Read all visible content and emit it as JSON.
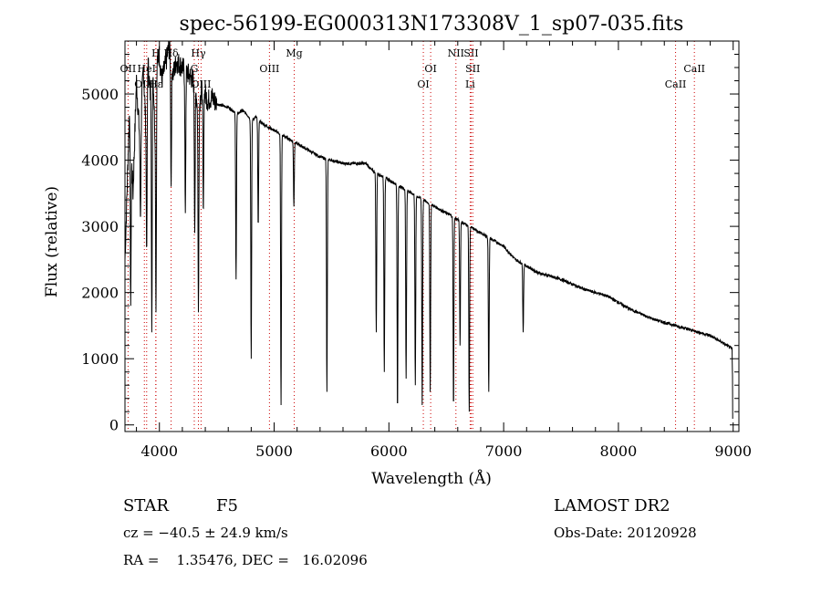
{
  "chart_data": {
    "type": "line",
    "title": "spec-56199-EG000313N173308V_1_sp07-035.fits",
    "xlabel": "Wavelength (Å)",
    "ylabel": "Flux (relative)",
    "xlim": [
      3700,
      9050
    ],
    "ylim": [
      -100,
      5800
    ],
    "xticks": [
      4000,
      5000,
      6000,
      7000,
      8000,
      9000
    ],
    "yticks": [
      0,
      1000,
      2000,
      3000,
      4000,
      5000
    ],
    "grid": false,
    "series": [
      {
        "style": "black solid line",
        "x": [
          3700,
          3740,
          3770,
          3800,
          3830,
          3860,
          3880,
          3900,
          3920,
          3940,
          3960,
          3980,
          4000,
          4020,
          4060,
          4080,
          4100,
          4120,
          4150,
          4200,
          4250,
          4300,
          4320,
          4340,
          4360,
          4380,
          4420,
          4460,
          4500,
          4600,
          4680,
          4720,
          4760,
          4800,
          4840,
          4900,
          4950,
          5000,
          5050,
          5100,
          5150,
          5200,
          5250,
          5300,
          5400,
          5500,
          5600,
          5700,
          5800,
          5850,
          5900,
          5950,
          6000,
          6050,
          6100,
          6150,
          6200,
          6250,
          6300,
          6400,
          6450,
          6500,
          6560,
          6600,
          6650,
          6700,
          6750,
          6800,
          6900,
          7000,
          7100,
          7200,
          7300,
          7500,
          7700,
          7900,
          8100,
          8300,
          8500,
          8700,
          8800,
          8900,
          8990,
          9000
        ],
        "y": [
          2500,
          4800,
          3500,
          5200,
          4300,
          5400,
          4600,
          5500,
          5000,
          5600,
          4500,
          5500,
          5600,
          5200,
          5500,
          5700,
          5600,
          5300,
          5500,
          5400,
          5300,
          5200,
          5000,
          4700,
          5000,
          5100,
          4900,
          4950,
          4850,
          4800,
          4700,
          4750,
          4700,
          4600,
          4650,
          4550,
          4500,
          4450,
          4400,
          4350,
          4300,
          4250,
          4200,
          4150,
          4050,
          4000,
          3950,
          3950,
          3950,
          3850,
          3800,
          3750,
          3700,
          3650,
          3600,
          3550,
          3500,
          3450,
          3400,
          3300,
          3250,
          3200,
          3150,
          3100,
          3050,
          3000,
          2950,
          2900,
          2800,
          2700,
          2500,
          2400,
          2300,
          2200,
          2050,
          1950,
          1750,
          1600,
          1500,
          1400,
          1350,
          1250,
          1150,
          100
        ]
      }
    ],
    "absorption_dips": [
      {
        "x": 3750,
        "y": 1800
      },
      {
        "x": 3835,
        "y": 3100
      },
      {
        "x": 3889,
        "y": 2600
      },
      {
        "x": 3934,
        "y": 1400
      },
      {
        "x": 3970,
        "y": 1700
      },
      {
        "x": 4102,
        "y": 3600
      },
      {
        "x": 4226,
        "y": 3200
      },
      {
        "x": 4308,
        "y": 2900
      },
      {
        "x": 4340,
        "y": 1700
      },
      {
        "x": 4383,
        "y": 3200
      },
      {
        "x": 4668,
        "y": 2200
      },
      {
        "x": 4800,
        "y": 1000
      },
      {
        "x": 4861,
        "y": 3000
      },
      {
        "x": 5060,
        "y": 300
      },
      {
        "x": 5172,
        "y": 3300
      },
      {
        "x": 5460,
        "y": 500
      },
      {
        "x": 5890,
        "y": 1400
      },
      {
        "x": 5960,
        "y": 800
      },
      {
        "x": 6075,
        "y": 200
      },
      {
        "x": 6150,
        "y": 700
      },
      {
        "x": 6230,
        "y": 600
      },
      {
        "x": 6290,
        "y": 300
      },
      {
        "x": 6360,
        "y": 500
      },
      {
        "x": 6563,
        "y": 250
      },
      {
        "x": 6620,
        "y": 1200
      },
      {
        "x": 6700,
        "y": 200
      },
      {
        "x": 6870,
        "y": 500
      },
      {
        "x": 7170,
        "y": 1400
      }
    ],
    "line_markers": [
      {
        "label": "Hδ",
        "x": 4102,
        "row": 1
      },
      {
        "label": "H",
        "x": 3970,
        "row": 1
      },
      {
        "label": "Hγ",
        "x": 4340,
        "row": 1
      },
      {
        "label": "Mg",
        "x": 5175,
        "row": 1
      },
      {
        "label": "NII",
        "x": 6584,
        "row": 1
      },
      {
        "label": "SII",
        "x": 6717,
        "row": 1
      },
      {
        "label": "OII",
        "x": 3727,
        "row": 2
      },
      {
        "label": "HeI",
        "x": 3889,
        "row": 2
      },
      {
        "label": "G",
        "x": 4304,
        "row": 2
      },
      {
        "label": "OIII",
        "x": 4959,
        "row": 2
      },
      {
        "label": "OI",
        "x": 6364,
        "row": 2
      },
      {
        "label": "SII",
        "x": 6731,
        "row": 2
      },
      {
        "label": "CaII",
        "x": 8662,
        "row": 2
      },
      {
        "label": "OIII",
        "x": 3869,
        "row": 3
      },
      {
        "label": "Hε",
        "x": 3968,
        "row": 3
      },
      {
        "label": "OIII",
        "x": 4363,
        "row": 3
      },
      {
        "label": "OI",
        "x": 6300,
        "row": 3
      },
      {
        "label": "Li",
        "x": 6708,
        "row": 3
      },
      {
        "label": "CaII",
        "x": 8498,
        "row": 3
      }
    ],
    "marker_color": "#cc0000"
  },
  "info": {
    "class": "STAR",
    "subclass": "F5",
    "survey": "LAMOST DR2",
    "cz": "cz = −40.5 ± 24.9 km/s",
    "obs_date": "Obs-Date: 20120928",
    "coords": "RA =    1.35476, DEC =   16.02096"
  }
}
